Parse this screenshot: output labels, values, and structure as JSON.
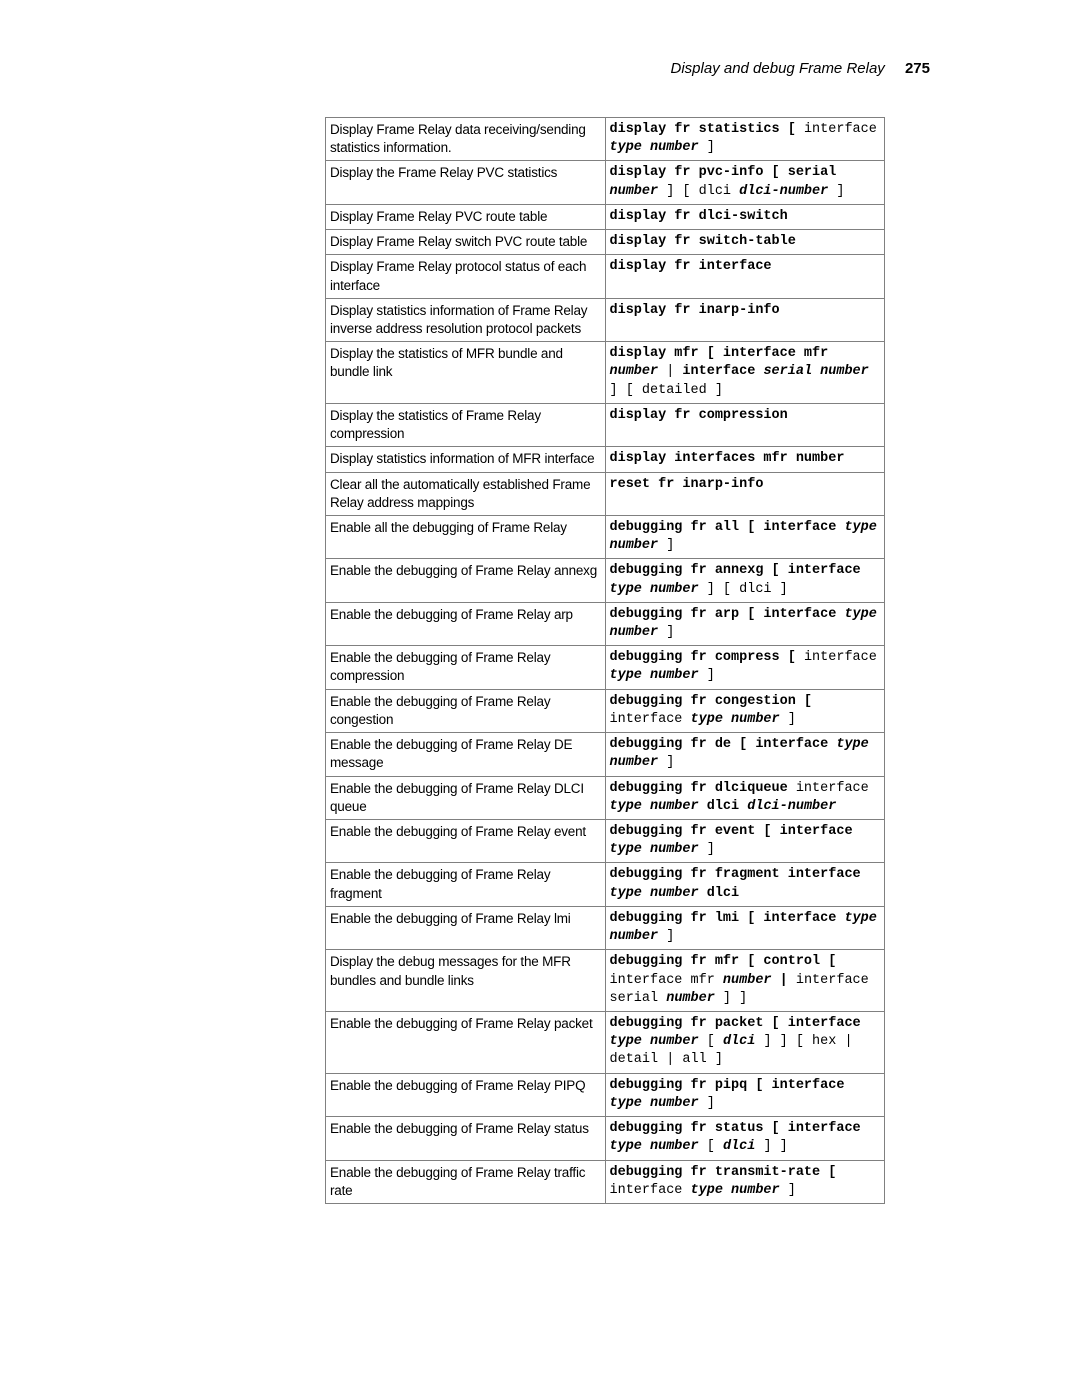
{
  "header": {
    "section_title": "Display and debug Frame Relay",
    "page_number": "275"
  },
  "table": {
    "rows": [
      {
        "desc": "Display Frame Relay data receiving/sending statistics information.",
        "cmd_segments": [
          {
            "t": "display fr statistics ["
          },
          {
            "t": " interface ",
            "p": true
          },
          {
            "t": "type number",
            "v": true
          },
          {
            "t": " ]",
            "p": true
          }
        ]
      },
      {
        "desc": "Display the Frame Relay PVC statistics",
        "cmd_segments": [
          {
            "t": "display fr pvc-info [ serial"
          },
          {
            "t": " "
          },
          {
            "t": "number",
            "v": true
          },
          {
            "t": " ] [ dlci ",
            "p": true
          },
          {
            "t": "dlci-number",
            "v": true
          },
          {
            "t": " ]",
            "p": true
          }
        ]
      },
      {
        "desc": "Display Frame Relay PVC route table",
        "cmd_segments": [
          {
            "t": "display fr dlci-switch"
          }
        ]
      },
      {
        "desc": "Display Frame Relay switch PVC route table",
        "cmd_segments": [
          {
            "t": "display fr switch-table"
          }
        ]
      },
      {
        "desc": "Display Frame Relay protocol status of each interface",
        "cmd_segments": [
          {
            "t": "display fr interface"
          }
        ]
      },
      {
        "desc": "Display statistics information of Frame Relay inverse address resolution protocol packets",
        "cmd_segments": [
          {
            "t": "display fr inarp-info"
          }
        ]
      },
      {
        "desc": "Display the statistics of MFR bundle and bundle link",
        "cmd_segments": [
          {
            "t": "display mfr [ interface mfr"
          },
          {
            "t": " "
          },
          {
            "t": "number",
            "v": true
          },
          {
            "t": " | ",
            "p": true
          },
          {
            "t": " interface "
          },
          {
            "t": "serial number",
            "v": true
          },
          {
            "t": " ] [ detailed ]",
            "p": true
          }
        ]
      },
      {
        "desc": "Display the statistics of Frame Relay compression",
        "cmd_segments": [
          {
            "t": "display fr compression"
          }
        ]
      },
      {
        "desc": "Display statistics information of MFR interface",
        "cmd_segments": [
          {
            "t": "display interfaces mfr number"
          }
        ]
      },
      {
        "desc": "Clear all the automatically established Frame Relay address mappings",
        "cmd_segments": [
          {
            "t": "reset fr inarp-info"
          }
        ]
      },
      {
        "desc": "Enable all the debugging of Frame Relay",
        "cmd_segments": [
          {
            "t": "debugging fr all [ interface"
          },
          {
            "t": " "
          },
          {
            "t": "type number",
            "v": true
          },
          {
            "t": " ]",
            "p": true
          }
        ]
      },
      {
        "desc": "Enable the debugging of Frame Relay annexg",
        "cmd_segments": [
          {
            "t": "debugging fr annexg [ interface"
          },
          {
            "t": " "
          },
          {
            "t": "type number",
            "v": true
          },
          {
            "t": " ] [ dlci ]",
            "p": true
          }
        ]
      },
      {
        "desc": "Enable the debugging of Frame Relay arp",
        "cmd_segments": [
          {
            "t": "debugging fr arp [ interface"
          },
          {
            "t": " "
          },
          {
            "t": "type number",
            "v": true
          },
          {
            "t": " ]",
            "p": true
          }
        ]
      },
      {
        "desc": "Enable the debugging of Frame Relay compression",
        "cmd_segments": [
          {
            "t": "debugging fr compress ["
          },
          {
            "t": " interface ",
            "p": true
          },
          {
            "t": "type number",
            "v": true
          },
          {
            "t": " ]",
            "p": true
          }
        ]
      },
      {
        "desc": "Enable the debugging of Frame Relay congestion",
        "cmd_segments": [
          {
            "t": "debugging fr congestion ["
          },
          {
            "t": " interface ",
            "p": true
          },
          {
            "t": "type number",
            "v": true
          },
          {
            "t": " ]",
            "p": true
          }
        ]
      },
      {
        "desc": "Enable the debugging of Frame Relay DE message",
        "cmd_segments": [
          {
            "t": "debugging fr de [ interface"
          },
          {
            "t": " "
          },
          {
            "t": "type number",
            "v": true
          },
          {
            "t": " ]",
            "p": true
          }
        ]
      },
      {
        "desc": "Enable the debugging of Frame Relay DLCI queue",
        "cmd_segments": [
          {
            "t": "debugging fr dlciqueue"
          },
          {
            "t": " interface ",
            "p": true
          },
          {
            "t": "type number",
            "v": true
          },
          {
            "t": " dlci"
          },
          {
            "t": " "
          },
          {
            "t": "dlci-number",
            "v": true
          }
        ]
      },
      {
        "desc": "Enable the debugging of Frame Relay event",
        "cmd_segments": [
          {
            "t": "debugging fr event [ interface"
          },
          {
            "t": " "
          },
          {
            "t": "type number",
            "v": true
          },
          {
            "t": " ]",
            "p": true
          }
        ]
      },
      {
        "desc": "Enable the debugging of Frame Relay fragment",
        "cmd_segments": [
          {
            "t": "debugging fr fragment interface"
          },
          {
            "t": " "
          },
          {
            "t": "type number",
            "v": true
          },
          {
            "t": " dlci"
          }
        ]
      },
      {
        "desc": "Enable the debugging of Frame Relay lmi",
        "cmd_segments": [
          {
            "t": "debugging fr lmi [ interface"
          },
          {
            "t": " "
          },
          {
            "t": "type number",
            "v": true
          },
          {
            "t": " ]",
            "p": true
          }
        ]
      },
      {
        "desc": "Display the debug messages for the MFR bundles and bundle links",
        "cmd_segments": [
          {
            "t": "debugging fr mfr [ control ["
          },
          {
            "t": " interface mfr ",
            "p": true
          },
          {
            "t": "number",
            "v": true
          },
          {
            "t": " | "
          },
          {
            "t": "interface serial ",
            "p": true
          },
          {
            "t": "number",
            "v": true
          },
          {
            "t": " ] ]",
            "p": true
          }
        ]
      },
      {
        "desc": "Enable the debugging of Frame Relay packet",
        "cmd_segments": [
          {
            "t": "debugging fr packet [ interface"
          },
          {
            "t": " "
          },
          {
            "t": "type number",
            "v": true
          },
          {
            "t": " [ ",
            "p": true
          },
          {
            "t": "dlci",
            "v": true
          },
          {
            "t": " ] ] [ hex | detail | all ]",
            "p": true
          }
        ]
      },
      {
        "desc": "Enable the debugging of Frame Relay PIPQ",
        "cmd_segments": [
          {
            "t": "debugging fr pipq [ interface"
          },
          {
            "t": " "
          },
          {
            "t": "type number",
            "v": true
          },
          {
            "t": " ]",
            "p": true
          }
        ]
      },
      {
        "desc": "Enable the debugging of Frame Relay status",
        "cmd_segments": [
          {
            "t": "debugging fr status [ interface"
          },
          {
            "t": " "
          },
          {
            "t": "type number",
            "v": true
          },
          {
            "t": " [ ",
            "p": true
          },
          {
            "t": "dlci",
            "v": true
          },
          {
            "t": " ] ]",
            "p": true
          }
        ]
      },
      {
        "desc": "Enable the debugging of Frame Relay traffic rate",
        "cmd_segments": [
          {
            "t": "debugging fr transmit-rate ["
          },
          {
            "t": " interface ",
            "p": true
          },
          {
            "t": "type number",
            "v": true
          },
          {
            "t": " ]",
            "p": true
          }
        ]
      }
    ]
  }
}
